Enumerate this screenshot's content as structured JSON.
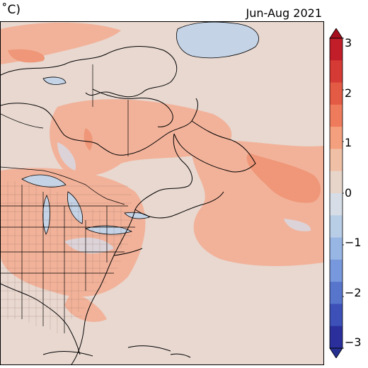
{
  "title": {
    "left": "˚C)",
    "right": "Jun-Aug 2021"
  },
  "colorbar": {
    "tick_labels": [
      "3",
      "2",
      "1",
      "0",
      "−1",
      "−2",
      "−3"
    ],
    "colors": [
      "#c21e2a",
      "#d63a35",
      "#e35a45",
      "#ee7c5c",
      "#f4a07e",
      "#efbfa6",
      "#e8d5ca",
      "#d6dde6",
      "#b8cde6",
      "#97b6e4",
      "#7798dc",
      "#5875cc",
      "#3c50b8",
      "#2a2f9c"
    ]
  },
  "map": {
    "background_color": "#e8d8d0",
    "warm_anomaly_color": "#f2a98c",
    "strong_warm_color": "#ee9273",
    "cool_color": "#ccdbea",
    "lake_color": "#c4d3e6"
  }
}
